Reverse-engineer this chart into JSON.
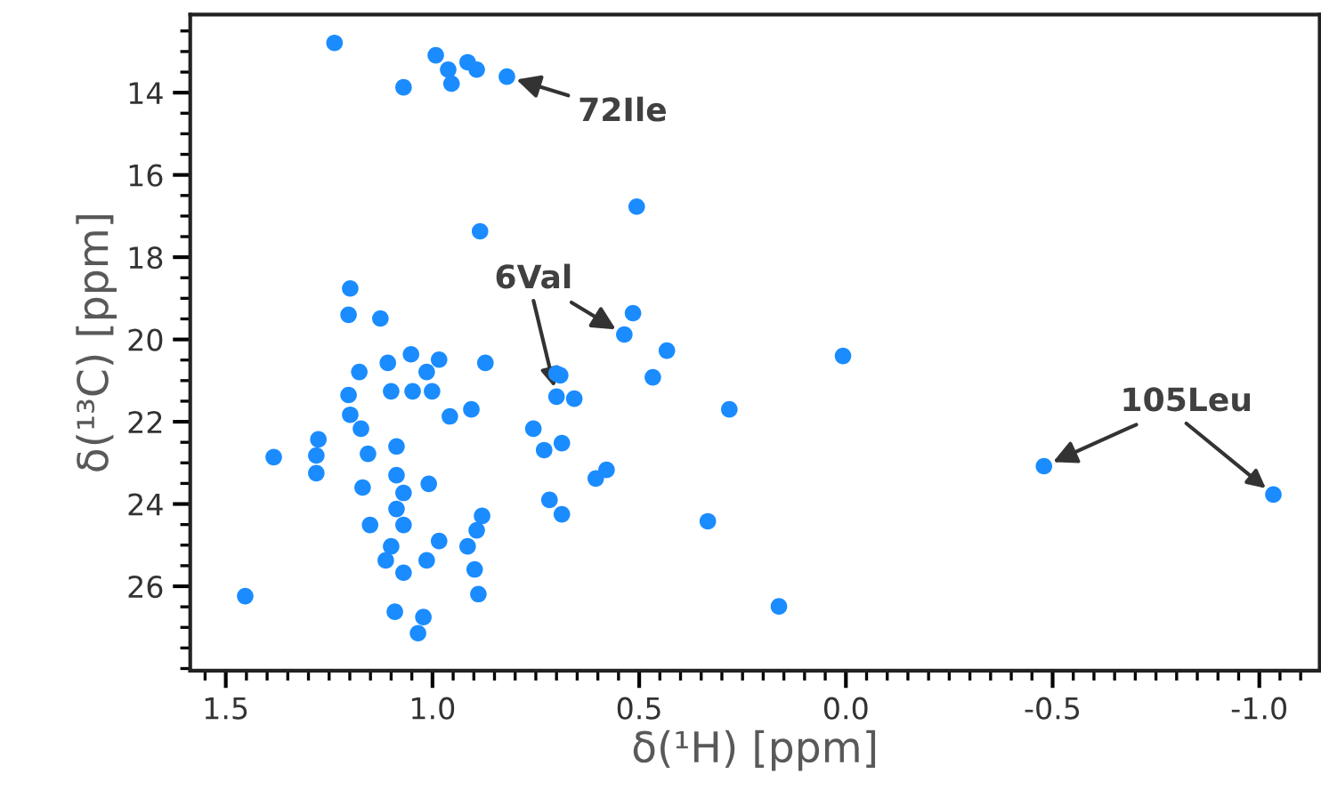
{
  "chart_data": {
    "type": "scatter",
    "xlabel": "δ(¹H) [ppm]",
    "ylabel": "δ(¹³C) [ppm]",
    "xlim": [
      1.586,
      -1.146
    ],
    "ylim": [
      28.05,
      12.1
    ],
    "xticks": [
      1.5,
      {
        "value": 1,
        "label": "1.0"
      },
      0.5,
      {
        "value": 0,
        "label": "0.0"
      },
      -0.5,
      {
        "value": -1,
        "label": "-1.0"
      }
    ],
    "yticks": [
      14,
      16,
      18,
      20,
      22,
      24,
      26
    ],
    "grid": false,
    "marker": "circle",
    "x": [
      1.237,
      0.992,
      0.915,
      0.893,
      0.962,
      0.82,
      1.07,
      0.954,
      0.506,
      0.885,
      1.199,
      1.203,
      1.126,
      0.515,
      0.536,
      0.433,
      0.467,
      0.007,
      0.7,
      0.7,
      0.657,
      0.282,
      0.756,
      0.73,
      0.687,
      0.605,
      0.579,
      0.717,
      0.687,
      0.334,
      -0.479,
      -1.034,
      0.162,
      1.177,
      1.108,
      1.052,
      0.984,
      1.014,
      0.872,
      0.691,
      1.203,
      1.1,
      1.001,
      1.048,
      1.199,
      0.958,
      0.906,
      1.173,
      1.276,
      1.384,
      1.281,
      1.281,
      1.156,
      1.087,
      1.087,
      1.009,
      1.169,
      1.07,
      1.087,
      1.151,
      1.07,
      0.88,
      0.893,
      1.1,
      0.984,
      0.915,
      1.113,
      1.014,
      0.898,
      1.07,
      1.453,
      0.889,
      1.091,
      1.022,
      1.035
    ],
    "series": [
      {
        "color": "#1a8cff",
        "values": [
          12.79,
          13.09,
          13.26,
          13.44,
          13.44,
          13.61,
          13.87,
          13.78,
          16.77,
          17.37,
          18.76,
          19.4,
          19.49,
          19.36,
          19.88,
          20.27,
          20.92,
          20.4,
          20.83,
          21.39,
          21.44,
          21.7,
          22.17,
          22.69,
          22.52,
          23.38,
          23.17,
          23.9,
          24.25,
          24.42,
          23.08,
          23.77,
          26.49,
          20.79,
          20.57,
          20.36,
          20.49,
          20.79,
          20.57,
          20.87,
          21.35,
          21.26,
          21.26,
          21.26,
          21.83,
          21.87,
          21.7,
          22.17,
          22.43,
          22.86,
          22.82,
          23.25,
          22.78,
          22.6,
          23.3,
          23.51,
          23.6,
          23.73,
          24.12,
          24.51,
          24.51,
          24.29,
          24.64,
          25.03,
          24.9,
          25.03,
          25.37,
          25.37,
          25.59,
          25.67,
          26.24,
          26.19,
          26.62,
          26.75,
          27.14
        ]
      }
    ],
    "annotations": [
      {
        "text": "72Ile",
        "x": 0.82,
        "y": 13.61
      },
      {
        "text": "6Val",
        "x": 0.536,
        "y": 19.88
      },
      {
        "text": "105Leu",
        "x": -0.479,
        "y": 23.08
      }
    ]
  }
}
